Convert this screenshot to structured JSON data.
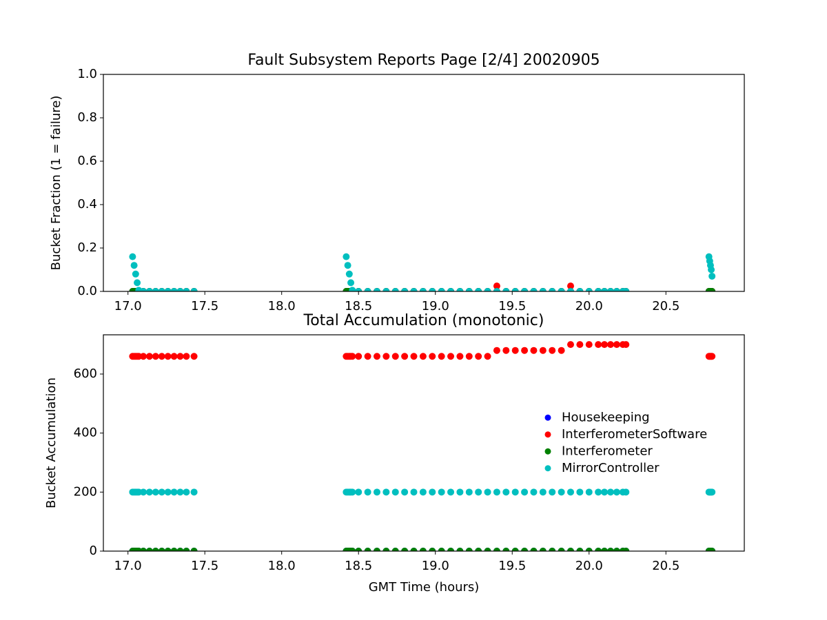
{
  "chart_data": [
    {
      "type": "scatter",
      "title": "Fault Subsystem Reports Page [2/4] 20020905",
      "ylabel": "Bucket Fraction (1 = failure)",
      "x": [
        17.03,
        17.04,
        17.05,
        17.06,
        17.07,
        17.1,
        17.14,
        17.18,
        17.22,
        17.26,
        17.3,
        17.34,
        17.38,
        17.43,
        18.42,
        18.43,
        18.44,
        18.45,
        18.46,
        18.5,
        18.56,
        18.62,
        18.68,
        18.74,
        18.8,
        18.86,
        18.92,
        18.98,
        19.04,
        19.1,
        19.16,
        19.22,
        19.28,
        19.34,
        19.4,
        19.46,
        19.52,
        19.58,
        19.64,
        19.7,
        19.76,
        19.82,
        19.88,
        19.94,
        20.0,
        20.06,
        20.1,
        20.14,
        20.18,
        20.22,
        20.24,
        20.78,
        20.785,
        20.79,
        20.795,
        20.8
      ],
      "series": [
        {
          "color": "#0000ff",
          "values": [
            0,
            0,
            0,
            0,
            0,
            0,
            0,
            0,
            0,
            0,
            0,
            0,
            0,
            0,
            0,
            0,
            0,
            0,
            0,
            0,
            0,
            0,
            0,
            0,
            0,
            0,
            0,
            0,
            0,
            0,
            0,
            0,
            0,
            0,
            0,
            0,
            0,
            0,
            0,
            0,
            0,
            0,
            0,
            0,
            0,
            0,
            0,
            0,
            0,
            0,
            0,
            0,
            0,
            0,
            0,
            0
          ]
        },
        {
          "color": "#ff0000",
          "values": [
            0,
            0,
            0,
            0,
            0,
            0,
            0,
            0,
            0,
            0,
            0,
            0,
            0,
            0,
            0,
            0,
            0,
            0,
            0,
            0,
            0,
            0,
            0,
            0,
            0,
            0,
            0,
            0,
            0,
            0,
            0,
            0,
            0,
            0,
            0.025,
            0,
            0,
            0,
            0,
            0,
            0,
            0,
            0.025,
            0,
            0,
            0,
            0,
            0,
            0,
            0,
            0,
            0,
            0,
            0,
            0,
            0
          ]
        },
        {
          "color": "#008000",
          "values": [
            0,
            0,
            0,
            0,
            0,
            0,
            0,
            0,
            0,
            0,
            0,
            0,
            0,
            0,
            0,
            0,
            0,
            0,
            0,
            0,
            0,
            0,
            0,
            0,
            0,
            0,
            0,
            0,
            0,
            0,
            0,
            0,
            0,
            0,
            0,
            0,
            0,
            0,
            0,
            0,
            0,
            0,
            0,
            0,
            0,
            0,
            0,
            0,
            0,
            0,
            0,
            0,
            0,
            0,
            0,
            0
          ]
        },
        {
          "color": "#00bfbf",
          "values": [
            0.16,
            0.12,
            0.08,
            0.04,
            0.005,
            0,
            0,
            0,
            0,
            0,
            0,
            0,
            0,
            0,
            0.16,
            0.12,
            0.08,
            0.04,
            0.005,
            0,
            0,
            0,
            0,
            0,
            0,
            0,
            0,
            0,
            0,
            0,
            0,
            0,
            0,
            0,
            0,
            0,
            0,
            0,
            0,
            0,
            0,
            0,
            0,
            0,
            0,
            0,
            0,
            0,
            0,
            0,
            0,
            0.16,
            0.14,
            0.12,
            0.1,
            0.07
          ]
        }
      ],
      "xlim": [
        16.84,
        21.01
      ],
      "ylim": [
        0,
        1
      ],
      "xticks": [
        {
          "value": 17,
          "label": "17.0"
        },
        17.5,
        {
          "value": 18,
          "label": "18.0"
        },
        18.5,
        {
          "value": 19,
          "label": "19.0"
        },
        19.5,
        {
          "value": 20,
          "label": "20.0"
        },
        20.5
      ],
      "yticks": [
        {
          "value": 0,
          "label": "0.0"
        },
        0.2,
        0.4,
        0.6,
        0.8,
        {
          "value": 1,
          "label": "1.0"
        }
      ],
      "grid": false
    },
    {
      "type": "scatter",
      "title": "Total Accumulation (monotonic)",
      "ylabel": "Bucket Accumulation",
      "xlabel": "GMT Time (hours)",
      "x": [
        17.03,
        17.04,
        17.05,
        17.06,
        17.07,
        17.1,
        17.14,
        17.18,
        17.22,
        17.26,
        17.3,
        17.34,
        17.38,
        17.43,
        18.42,
        18.43,
        18.44,
        18.45,
        18.46,
        18.5,
        18.56,
        18.62,
        18.68,
        18.74,
        18.8,
        18.86,
        18.92,
        18.98,
        19.04,
        19.1,
        19.16,
        19.22,
        19.28,
        19.34,
        19.4,
        19.46,
        19.52,
        19.58,
        19.64,
        19.7,
        19.76,
        19.82,
        19.88,
        19.94,
        20.0,
        20.06,
        20.1,
        20.14,
        20.18,
        20.22,
        20.24,
        20.78,
        20.785,
        20.79,
        20.795,
        20.8
      ],
      "series": [
        {
          "name": "Housekeeping",
          "color": "#0000ff",
          "values": [
            0,
            0,
            0,
            0,
            0,
            0,
            0,
            0,
            0,
            0,
            0,
            0,
            0,
            0,
            0,
            0,
            0,
            0,
            0,
            0,
            0,
            0,
            0,
            0,
            0,
            0,
            0,
            0,
            0,
            0,
            0,
            0,
            0,
            0,
            0,
            0,
            0,
            0,
            0,
            0,
            0,
            0,
            0,
            0,
            0,
            0,
            0,
            0,
            0,
            0,
            0,
            0,
            0,
            0,
            0,
            0
          ]
        },
        {
          "name": "InterferometerSoftware",
          "color": "#ff0000",
          "values": [
            660,
            660,
            660,
            660,
            660,
            660,
            660,
            660,
            660,
            660,
            660,
            660,
            660,
            660,
            660,
            660,
            660,
            660,
            660,
            660,
            660,
            660,
            660,
            660,
            660,
            660,
            660,
            660,
            660,
            660,
            660,
            660,
            660,
            660,
            680,
            680,
            680,
            680,
            680,
            680,
            680,
            680,
            700,
            700,
            700,
            700,
            700,
            700,
            700,
            700,
            700,
            660,
            660,
            660,
            660,
            660
          ]
        },
        {
          "name": "Interferometer",
          "color": "#008000",
          "values": [
            0,
            0,
            0,
            0,
            0,
            0,
            0,
            0,
            0,
            0,
            0,
            0,
            0,
            0,
            0,
            0,
            0,
            0,
            0,
            0,
            0,
            0,
            0,
            0,
            0,
            0,
            0,
            0,
            0,
            0,
            0,
            0,
            0,
            0,
            0,
            0,
            0,
            0,
            0,
            0,
            0,
            0,
            0,
            0,
            0,
            0,
            0,
            0,
            0,
            0,
            0,
            0,
            0,
            0,
            0,
            0
          ]
        },
        {
          "name": "MirrorController",
          "color": "#00bfbf",
          "values": [
            200,
            200,
            200,
            200,
            200,
            200,
            200,
            200,
            200,
            200,
            200,
            200,
            200,
            200,
            200,
            200,
            200,
            200,
            200,
            200,
            200,
            200,
            200,
            200,
            200,
            200,
            200,
            200,
            200,
            200,
            200,
            200,
            200,
            200,
            200,
            200,
            200,
            200,
            200,
            200,
            200,
            200,
            200,
            200,
            200,
            200,
            200,
            200,
            200,
            200,
            200,
            200,
            200,
            200,
            200,
            200
          ]
        }
      ],
      "xlim": [
        16.84,
        21.01
      ],
      "ylim": [
        0,
        733
      ],
      "xticks": [
        {
          "value": 17,
          "label": "17.0"
        },
        17.5,
        {
          "value": 18,
          "label": "18.0"
        },
        18.5,
        {
          "value": 19,
          "label": "19.0"
        },
        19.5,
        {
          "value": 20,
          "label": "20.0"
        },
        20.5
      ],
      "yticks": [
        0,
        200,
        400,
        600
      ],
      "grid": false,
      "legend": "center right"
    }
  ]
}
